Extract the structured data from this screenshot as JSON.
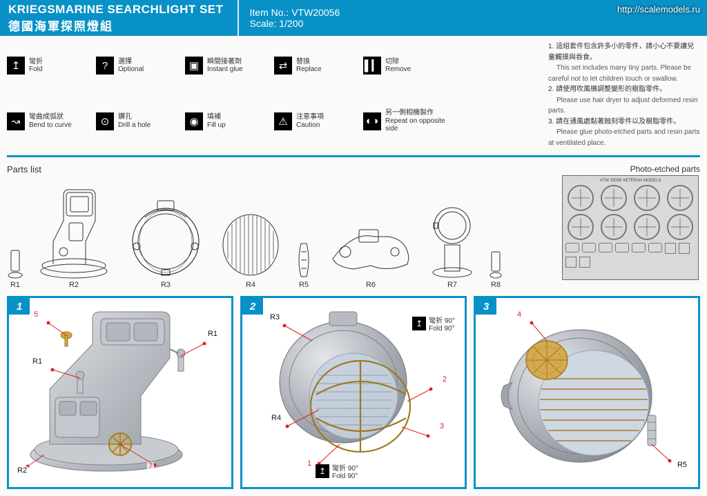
{
  "watermark": "http://scalemodels.ru",
  "header": {
    "title_en": "KRIEGSMARINE SEARCHLIGHT SET",
    "title_cjk": "德國海軍探照燈組",
    "item_no_label": "Item No.: ",
    "item_no": "VTW20056",
    "scale_label": "Scale: ",
    "scale": "1/200"
  },
  "legend": [
    {
      "icon": "↥",
      "cjk": "彎折",
      "en": "Fold"
    },
    {
      "icon": "?",
      "cjk": "選擇",
      "en": "Optional"
    },
    {
      "icon": "▣",
      "cjk": "瞬間接著劑",
      "en": "Instant glue"
    },
    {
      "icon": "⇄",
      "cjk": "替換",
      "en": "Replace"
    },
    {
      "icon": "▌▎",
      "cjk": "切除",
      "en": "Remove"
    },
    {
      "icon": "",
      "cjk": "",
      "en": ""
    },
    {
      "icon": "↝",
      "cjk": "彎曲成弧狀",
      "en": "Bend to curve"
    },
    {
      "icon": "⊙",
      "cjk": "鑽孔",
      "en": "Drill a hole"
    },
    {
      "icon": "◉",
      "cjk": "填補",
      "en": "Fill up"
    },
    {
      "icon": "⚠",
      "cjk": "注意事項",
      "en": "Caution"
    },
    {
      "icon": "◐◑",
      "cjk": "另一側相機製作",
      "en": "Repeat on opposite side"
    }
  ],
  "notes": [
    {
      "n": "1.",
      "cjk": "這組套件包含許多小的零件，請小心不要讓兒童觸摸與吞食。",
      "en": "This set includes many tiny parts. Please be careful not to let children touch or swallow."
    },
    {
      "n": "2.",
      "cjk": "請使用吹風機調整變形的樹脂零件。",
      "en": "Please use hair dryer to adjust deformed resin parts."
    },
    {
      "n": "3.",
      "cjk": "請在通風處黏著蝕刻零件以及樹脂零件。",
      "en": "Please glue photo-etched parts and resin parts at ventilated place."
    }
  ],
  "parts_list_label": "Parts list",
  "parts": [
    "R1",
    "R2",
    "R3",
    "R4",
    "R5",
    "R6",
    "R7",
    "R8"
  ],
  "pe_title": "Photo-etched parts",
  "pe_header": "VTW 20056   VETERAN MODELS",
  "steps": {
    "s1": {
      "num": "1",
      "labels": {
        "r1a": "R1",
        "r1b": "R1",
        "r2": "R2",
        "p5": "5",
        "p7": "7"
      }
    },
    "s2": {
      "num": "2",
      "labels": {
        "r3": "R3",
        "r4": "R4",
        "p1": "1",
        "p2": "2",
        "p3": "3"
      },
      "fold": {
        "cjk": "彎折 90°",
        "en": "Fold 90°"
      }
    },
    "s3": {
      "num": "3",
      "labels": {
        "r5": "R5",
        "p4": "4"
      }
    }
  },
  "colors": {
    "blue": "#0891c7",
    "red": "#e02020",
    "gray_body": "#b8bcc2",
    "gray_dark": "#7d828a",
    "gray_light": "#dcdee1",
    "brass": "#d4a847",
    "brass_dark": "#a07820"
  }
}
